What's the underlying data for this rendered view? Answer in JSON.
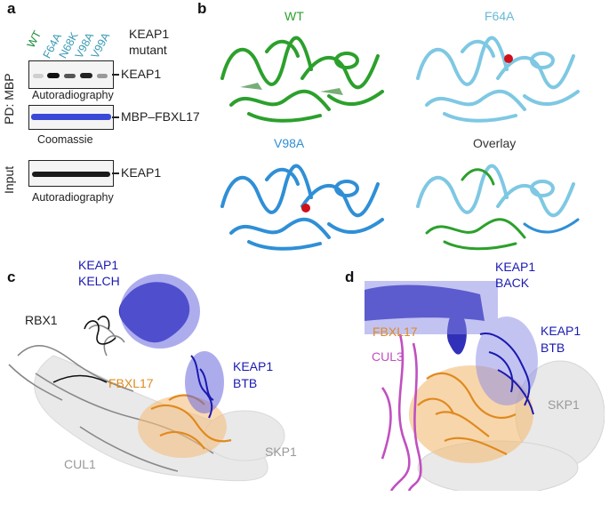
{
  "panel_a": {
    "letter": "a",
    "mutant_header_line1": "KEAP1",
    "mutant_header_line2": "mutant",
    "lanes": [
      {
        "label": "WT",
        "color": "#1a8a3a"
      },
      {
        "label": "F64A",
        "color": "#3a9ab5"
      },
      {
        "label": "N68K",
        "color": "#3a9ab5"
      },
      {
        "label": "V98A",
        "color": "#3a9ab5"
      },
      {
        "label": "V99A",
        "color": "#3a9ab5"
      }
    ],
    "side_label_pd": "PD: MBP",
    "side_label_input": "Input",
    "blots": [
      {
        "band_label": "KEAP1",
        "caption": "Autoradiography"
      },
      {
        "band_label": "MBP–FBXL17",
        "caption": "Coomassie"
      },
      {
        "band_label": "KEAP1",
        "caption": "Autoradiography"
      }
    ]
  },
  "panel_b": {
    "letter": "b",
    "structures": [
      {
        "title": "WT",
        "color": "#2ca02c"
      },
      {
        "title": "F64A",
        "color": "#7ec8e3"
      },
      {
        "title": "V98A",
        "color": "#2f8fd6"
      },
      {
        "title": "Overlay",
        "color": "#333333"
      }
    ]
  },
  "panel_c": {
    "letter": "c",
    "labels": {
      "keap1_kelch_1": "KEAP1",
      "keap1_kelch_2": "KELCH",
      "rbx1": "RBX1",
      "fbxl17": "FBXL17",
      "keap1_btb_1": "KEAP1",
      "keap1_btb_2": "BTB",
      "skp1": "SKP1",
      "cul1": "CUL1"
    }
  },
  "panel_d": {
    "letter": "d",
    "labels": {
      "keap1_back_1": "KEAP1",
      "keap1_back_2": "BACK",
      "fbxl17": "FBXL17",
      "cul3": "CUL3",
      "keap1_btb_1": "KEAP1",
      "keap1_btb_2": "BTB",
      "skp1": "SKP1"
    }
  },
  "colors": {
    "wt_green": "#2ca02c",
    "f64a_light_blue": "#7ec8e3",
    "v98a_blue": "#2f8fd6",
    "keap1_navy": "#1a1ab0",
    "fbxl17_orange": "#e08a1e",
    "cul3_magenta": "#c050c0",
    "grey_label": "#999999"
  }
}
